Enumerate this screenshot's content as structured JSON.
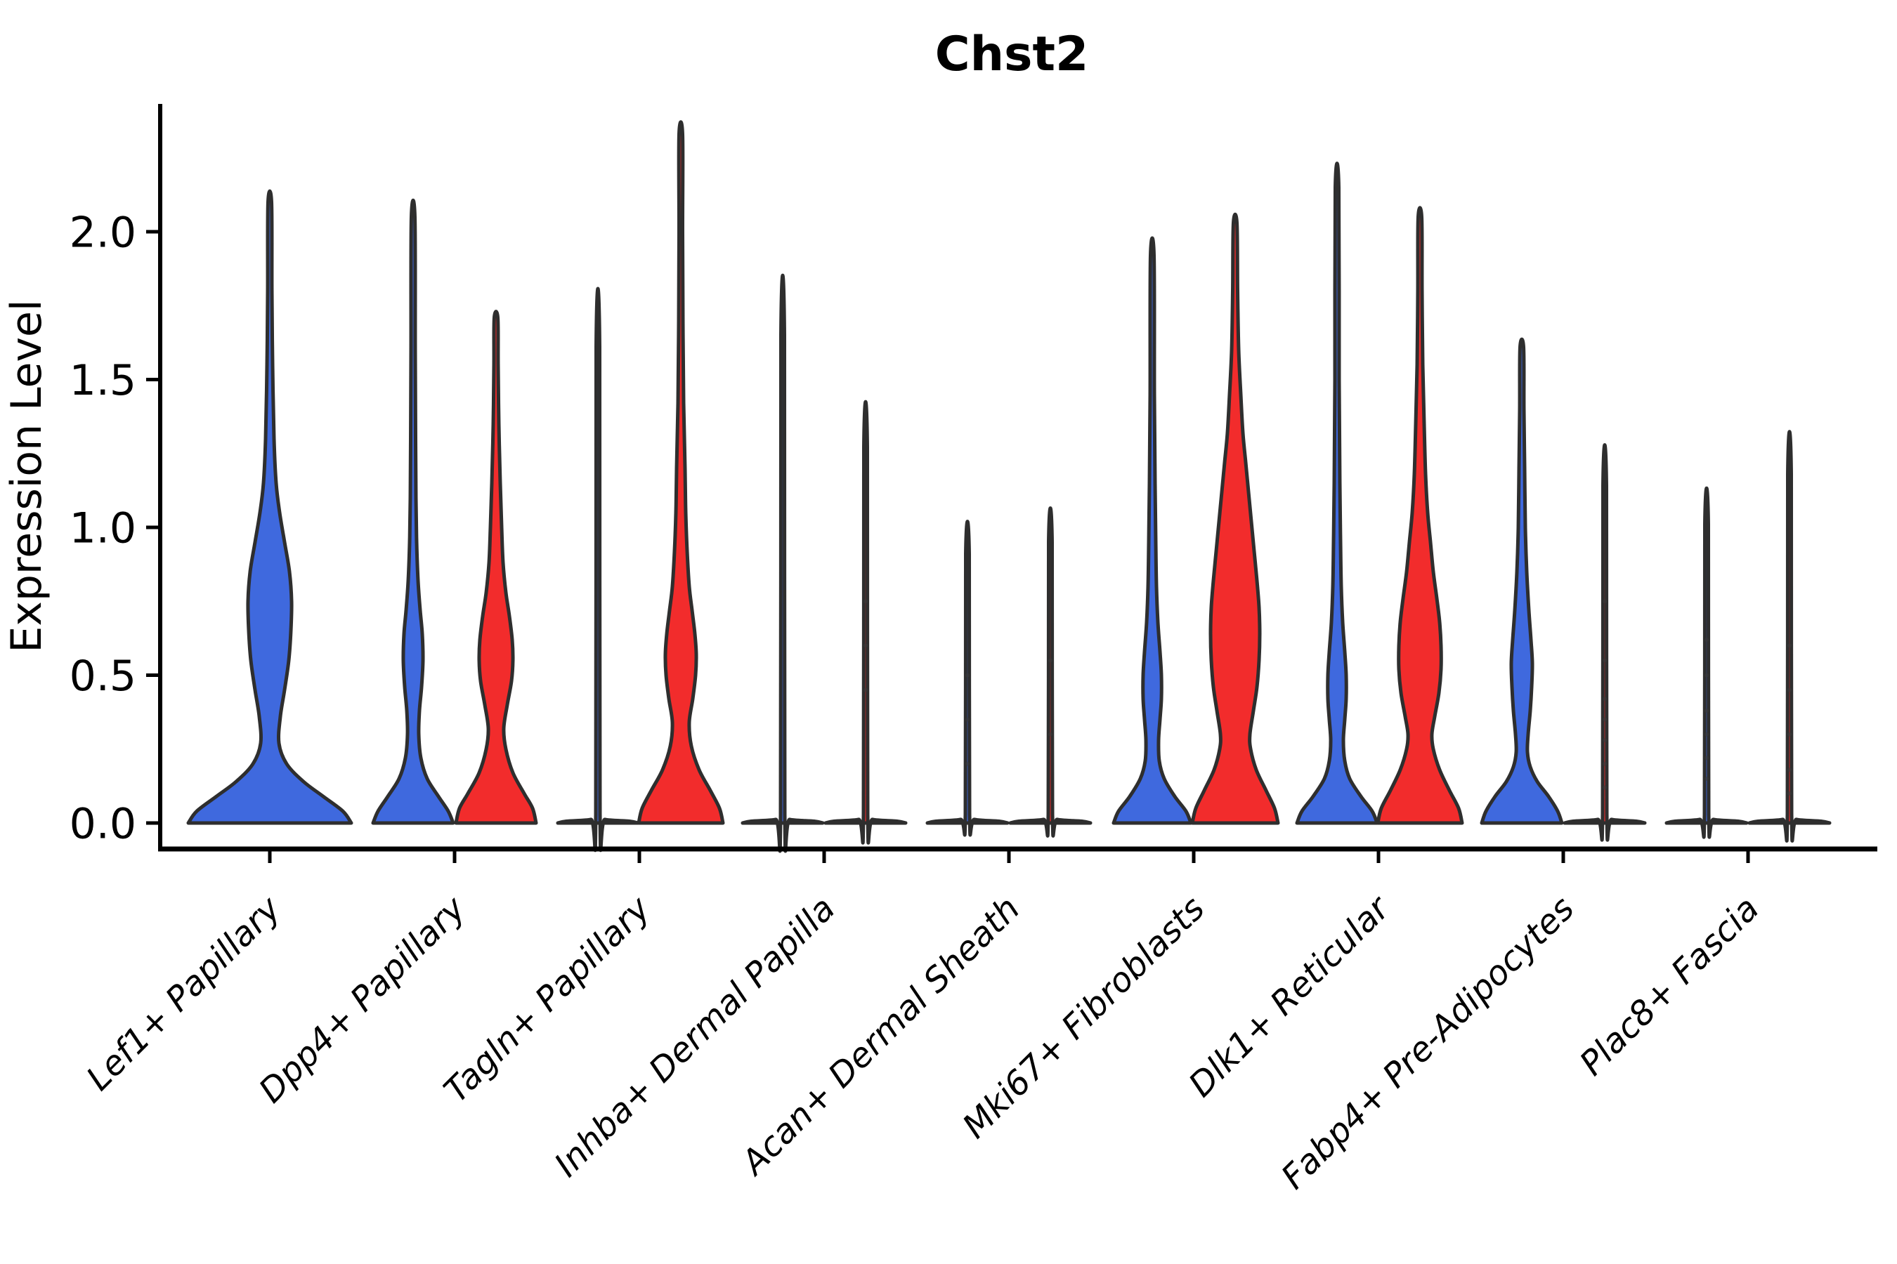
{
  "chart_data": {
    "type": "violin",
    "title": "Chst2",
    "ylabel": "Expression Level",
    "ylim": [
      0,
      2.4
    ],
    "yticks": [
      0.0,
      0.5,
      1.0,
      1.5,
      2.0
    ],
    "ytick_labels": [
      "0.0",
      "0.5",
      "1.0",
      "1.5",
      "2.0"
    ],
    "grid": false,
    "legend": "none",
    "categories": [
      "Lef1+ Papillary",
      "Dpp4+ Papillary",
      "Tagln+ Papillary",
      "Inhba+ Dermal Papilla",
      "Acan+ Dermal Sheath",
      "Mki67+ Fibroblasts",
      "Dlk1+ Reticular",
      "Fabp4+ Pre-Adipocytes",
      "Plac8+ Fascia"
    ],
    "series_colors": {
      "blue": "#3F69DE",
      "red": "#F22C2C"
    },
    "outline_color": "#2E2E2E",
    "axis_color": "#000000",
    "violins": [
      {
        "category_index": 0,
        "side": "center",
        "color": "blue",
        "max_value": 2.1,
        "profile": [
          [
            0,
            116
          ],
          [
            0.04,
            104
          ],
          [
            0.09,
            76
          ],
          [
            0.14,
            48
          ],
          [
            0.2,
            24
          ],
          [
            0.27,
            13
          ],
          [
            0.36,
            15
          ],
          [
            0.45,
            21
          ],
          [
            0.55,
            27
          ],
          [
            0.65,
            30
          ],
          [
            0.75,
            31
          ],
          [
            0.85,
            28
          ],
          [
            0.95,
            21
          ],
          [
            1.05,
            14
          ],
          [
            1.15,
            9
          ],
          [
            1.3,
            6
          ],
          [
            1.55,
            4
          ],
          [
            1.8,
            3
          ],
          [
            2.1,
            2.5
          ]
        ]
      },
      {
        "category_index": 1,
        "side": "left",
        "color": "blue",
        "max_value": 2.05,
        "profile": [
          [
            0,
            57
          ],
          [
            0.04,
            50
          ],
          [
            0.09,
            36
          ],
          [
            0.15,
            20
          ],
          [
            0.22,
            11
          ],
          [
            0.3,
            8
          ],
          [
            0.38,
            9
          ],
          [
            0.46,
            12
          ],
          [
            0.55,
            14
          ],
          [
            0.64,
            13
          ],
          [
            0.72,
            10
          ],
          [
            0.82,
            7
          ],
          [
            0.95,
            5
          ],
          [
            1.1,
            4
          ],
          [
            1.3,
            3.5
          ],
          [
            1.6,
            3
          ],
          [
            2.05,
            2.5
          ]
        ]
      },
      {
        "category_index": 1,
        "side": "right",
        "color": "red",
        "max_value": 1.71,
        "profile": [
          [
            0,
            57
          ],
          [
            0.05,
            52
          ],
          [
            0.1,
            40
          ],
          [
            0.17,
            24
          ],
          [
            0.25,
            14
          ],
          [
            0.32,
            11
          ],
          [
            0.4,
            16
          ],
          [
            0.48,
            22
          ],
          [
            0.55,
            24
          ],
          [
            0.62,
            23
          ],
          [
            0.7,
            19
          ],
          [
            0.78,
            14
          ],
          [
            0.88,
            10
          ],
          [
            1.0,
            8
          ],
          [
            1.15,
            6
          ],
          [
            1.35,
            4
          ],
          [
            1.55,
            3
          ],
          [
            1.71,
            2.5
          ]
        ]
      },
      {
        "category_index": 2,
        "side": "left",
        "color": "blue",
        "max_value": 1.61,
        "profile": [
          [
            0,
            57
          ],
          [
            0.006,
            45
          ],
          [
            0.012,
            10
          ],
          [
            0.03,
            3
          ],
          [
            1.61,
            2.5
          ]
        ]
      },
      {
        "category_index": 2,
        "side": "right",
        "color": "red",
        "max_value": 2.33,
        "profile": [
          [
            0,
            60
          ],
          [
            0.05,
            55
          ],
          [
            0.11,
            42
          ],
          [
            0.18,
            26
          ],
          [
            0.26,
            15
          ],
          [
            0.34,
            12
          ],
          [
            0.42,
            17
          ],
          [
            0.5,
            21
          ],
          [
            0.57,
            22
          ],
          [
            0.64,
            20
          ],
          [
            0.72,
            16
          ],
          [
            0.8,
            12
          ],
          [
            0.92,
            9
          ],
          [
            1.05,
            7
          ],
          [
            1.2,
            6
          ],
          [
            1.42,
            4
          ],
          [
            1.7,
            3
          ],
          [
            2.0,
            2.5
          ],
          [
            2.33,
            2.5
          ]
        ]
      },
      {
        "category_index": 3,
        "side": "left",
        "color": "blue",
        "max_value": 1.65,
        "profile": [
          [
            0,
            57
          ],
          [
            0.006,
            45
          ],
          [
            0.012,
            10
          ],
          [
            0.03,
            3
          ],
          [
            1.65,
            2.5
          ]
        ]
      },
      {
        "category_index": 3,
        "side": "right",
        "color": "red",
        "max_value": 1.27,
        "profile": [
          [
            0,
            57
          ],
          [
            0.006,
            45
          ],
          [
            0.012,
            10
          ],
          [
            0.03,
            3
          ],
          [
            1.27,
            2.5
          ]
        ],
        "dots": [
          0.45,
          0.6,
          0.75
        ]
      },
      {
        "category_index": 4,
        "side": "left",
        "color": "blue",
        "max_value": 0.91,
        "profile": [
          [
            0,
            57
          ],
          [
            0.006,
            45
          ],
          [
            0.012,
            10
          ],
          [
            0.03,
            3
          ],
          [
            0.91,
            2.5
          ]
        ],
        "dots": [
          0.2,
          0.35,
          0.5
        ]
      },
      {
        "category_index": 4,
        "side": "right",
        "color": "red",
        "max_value": 0.95,
        "profile": [
          [
            0,
            57
          ],
          [
            0.006,
            45
          ],
          [
            0.012,
            10
          ],
          [
            0.03,
            3
          ],
          [
            0.95,
            2.5
          ]
        ],
        "dots": [
          0.3,
          0.55
        ]
      },
      {
        "category_index": 5,
        "side": "left",
        "color": "blue",
        "max_value": 1.92,
        "profile": [
          [
            0,
            55
          ],
          [
            0.04,
            48
          ],
          [
            0.09,
            32
          ],
          [
            0.15,
            17
          ],
          [
            0.21,
            10
          ],
          [
            0.28,
            9
          ],
          [
            0.35,
            11
          ],
          [
            0.42,
            13
          ],
          [
            0.5,
            13
          ],
          [
            0.58,
            11
          ],
          [
            0.68,
            8
          ],
          [
            0.8,
            6
          ],
          [
            0.95,
            5
          ],
          [
            1.15,
            4
          ],
          [
            1.45,
            3
          ],
          [
            1.92,
            2.5
          ]
        ]
      },
      {
        "category_index": 5,
        "side": "right",
        "color": "red",
        "max_value": 2.03,
        "profile": [
          [
            0,
            61
          ],
          [
            0.05,
            56
          ],
          [
            0.11,
            44
          ],
          [
            0.18,
            30
          ],
          [
            0.25,
            22
          ],
          [
            0.3,
            21
          ],
          [
            0.38,
            26
          ],
          [
            0.46,
            31
          ],
          [
            0.55,
            34
          ],
          [
            0.64,
            35
          ],
          [
            0.73,
            34
          ],
          [
            0.82,
            31
          ],
          [
            0.92,
            27
          ],
          [
            1.02,
            23
          ],
          [
            1.12,
            19
          ],
          [
            1.22,
            15
          ],
          [
            1.32,
            11
          ],
          [
            1.45,
            8
          ],
          [
            1.6,
            5
          ],
          [
            1.8,
            3.5
          ],
          [
            2.03,
            2.5
          ]
        ]
      },
      {
        "category_index": 6,
        "side": "left",
        "color": "blue",
        "max_value": 2.15,
        "profile": [
          [
            0,
            57
          ],
          [
            0.04,
            50
          ],
          [
            0.09,
            34
          ],
          [
            0.15,
            18
          ],
          [
            0.21,
            11
          ],
          [
            0.28,
            9
          ],
          [
            0.35,
            11
          ],
          [
            0.42,
            13
          ],
          [
            0.5,
            13
          ],
          [
            0.58,
            11
          ],
          [
            0.68,
            8
          ],
          [
            0.8,
            6
          ],
          [
            0.95,
            5
          ],
          [
            1.15,
            4
          ],
          [
            1.5,
            3
          ],
          [
            2.15,
            2.5
          ]
        ]
      },
      {
        "category_index": 6,
        "side": "right",
        "color": "red",
        "max_value": 2.05,
        "profile": [
          [
            0,
            60
          ],
          [
            0.05,
            55
          ],
          [
            0.11,
            42
          ],
          [
            0.18,
            28
          ],
          [
            0.25,
            19
          ],
          [
            0.3,
            17
          ],
          [
            0.36,
            21
          ],
          [
            0.44,
            27
          ],
          [
            0.52,
            30
          ],
          [
            0.6,
            30
          ],
          [
            0.68,
            28
          ],
          [
            0.76,
            24
          ],
          [
            0.85,
            19
          ],
          [
            0.95,
            15
          ],
          [
            1.05,
            11
          ],
          [
            1.18,
            8
          ],
          [
            1.35,
            6
          ],
          [
            1.55,
            4
          ],
          [
            1.8,
            3
          ],
          [
            2.05,
            2.5
          ]
        ]
      },
      {
        "category_index": 7,
        "side": "left",
        "color": "blue",
        "max_value": 1.61,
        "profile": [
          [
            0,
            57
          ],
          [
            0.04,
            51
          ],
          [
            0.09,
            38
          ],
          [
            0.14,
            22
          ],
          [
            0.19,
            12
          ],
          [
            0.24,
            8
          ],
          [
            0.3,
            9
          ],
          [
            0.38,
            12
          ],
          [
            0.46,
            14
          ],
          [
            0.54,
            15
          ],
          [
            0.62,
            13
          ],
          [
            0.72,
            10
          ],
          [
            0.85,
            7
          ],
          [
            1.0,
            5
          ],
          [
            1.2,
            4
          ],
          [
            1.4,
            3
          ],
          [
            1.61,
            2.5
          ]
        ]
      },
      {
        "category_index": 7,
        "side": "right",
        "color": "red",
        "max_value": 1.14,
        "profile": [
          [
            0,
            57
          ],
          [
            0.006,
            45
          ],
          [
            0.012,
            10
          ],
          [
            0.03,
            3
          ],
          [
            1.14,
            2.5
          ]
        ],
        "dots": [
          0.12,
          0.2,
          0.28,
          0.35,
          0.42,
          0.55,
          0.75
        ]
      },
      {
        "category_index": 8,
        "side": "left",
        "color": "blue",
        "max_value": 1.01,
        "profile": [
          [
            0,
            57
          ],
          [
            0.006,
            45
          ],
          [
            0.012,
            10
          ],
          [
            0.03,
            3
          ],
          [
            1.01,
            2.5
          ]
        ],
        "dots": [
          0.15,
          0.22,
          0.3,
          0.38,
          0.5,
          0.62
        ]
      },
      {
        "category_index": 8,
        "side": "right",
        "color": "red",
        "max_value": 1.18,
        "profile": [
          [
            0,
            57
          ],
          [
            0.006,
            45
          ],
          [
            0.012,
            10
          ],
          [
            0.03,
            3
          ],
          [
            1.18,
            2.5
          ]
        ],
        "dots": [
          0.1,
          0.18,
          0.3,
          0.45,
          0.6
        ]
      }
    ]
  }
}
